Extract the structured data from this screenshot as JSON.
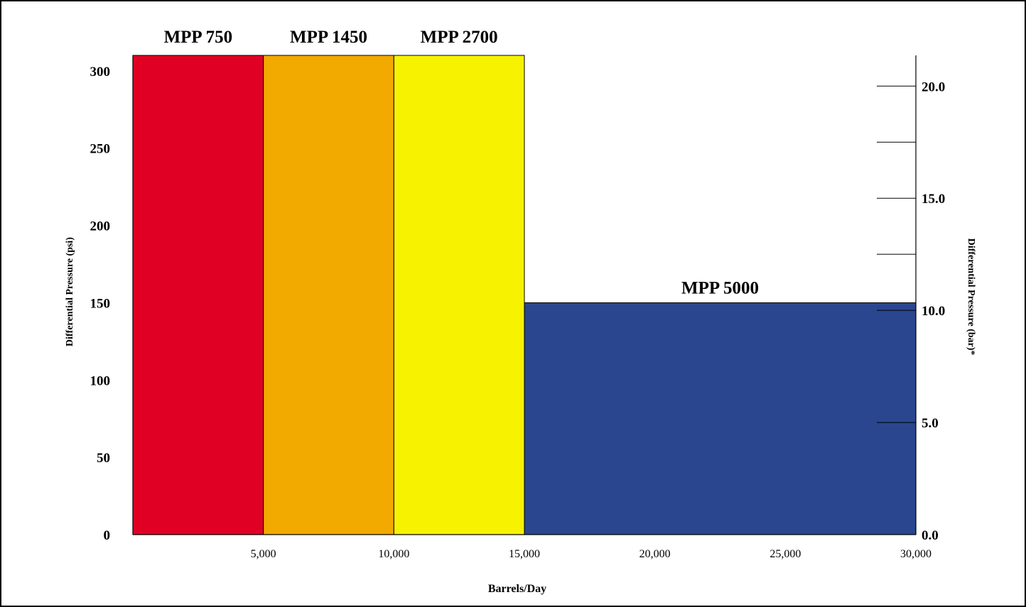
{
  "chart_data": {
    "type": "bar",
    "xlabel": "Barrels/Day",
    "ylabel": "Differential Pressure (psi)",
    "y2label": "Differential Pressure (bar)*",
    "xlim": [
      0,
      30000
    ],
    "ylim": [
      0,
      310
    ],
    "y2lim": [
      0,
      21.37
    ],
    "x_ticks": [
      {
        "value": 5000,
        "label": "5,000"
      },
      {
        "value": 10000,
        "label": "10,000"
      },
      {
        "value": 15000,
        "label": "15,000"
      },
      {
        "value": 20000,
        "label": "20,000"
      },
      {
        "value": 25000,
        "label": "25,000"
      },
      {
        "value": 30000,
        "label": "30,000"
      }
    ],
    "y_ticks": [
      {
        "value": 0,
        "label": "0"
      },
      {
        "value": 50,
        "label": "50"
      },
      {
        "value": 100,
        "label": "100"
      },
      {
        "value": 150,
        "label": "150"
      },
      {
        "value": 200,
        "label": "200"
      },
      {
        "value": 250,
        "label": "250"
      },
      {
        "value": 300,
        "label": "300"
      }
    ],
    "y2_ticks": [
      {
        "value": 0,
        "label": "0.0"
      },
      {
        "value": 5,
        "label": "5.0"
      },
      {
        "value": 10,
        "label": "10.0"
      },
      {
        "value": 12.5,
        "label": ""
      },
      {
        "value": 15,
        "label": "15.0"
      },
      {
        "value": 17.5,
        "label": ""
      },
      {
        "value": 20,
        "label": "20.0"
      }
    ],
    "series": [
      {
        "name": "MPP 750",
        "x_start": 0,
        "x_end": 5000,
        "max_psi": 310,
        "color": "#e00024"
      },
      {
        "name": "MPP 1450",
        "x_start": 5000,
        "x_end": 10000,
        "max_psi": 310,
        "color": "#f2a900"
      },
      {
        "name": "MPP 2700",
        "x_start": 10000,
        "x_end": 15000,
        "max_psi": 310,
        "color": "#f7f200"
      },
      {
        "name": "MPP 5000",
        "x_start": 15000,
        "x_end": 30000,
        "max_psi": 150,
        "color": "#29468f"
      }
    ]
  }
}
